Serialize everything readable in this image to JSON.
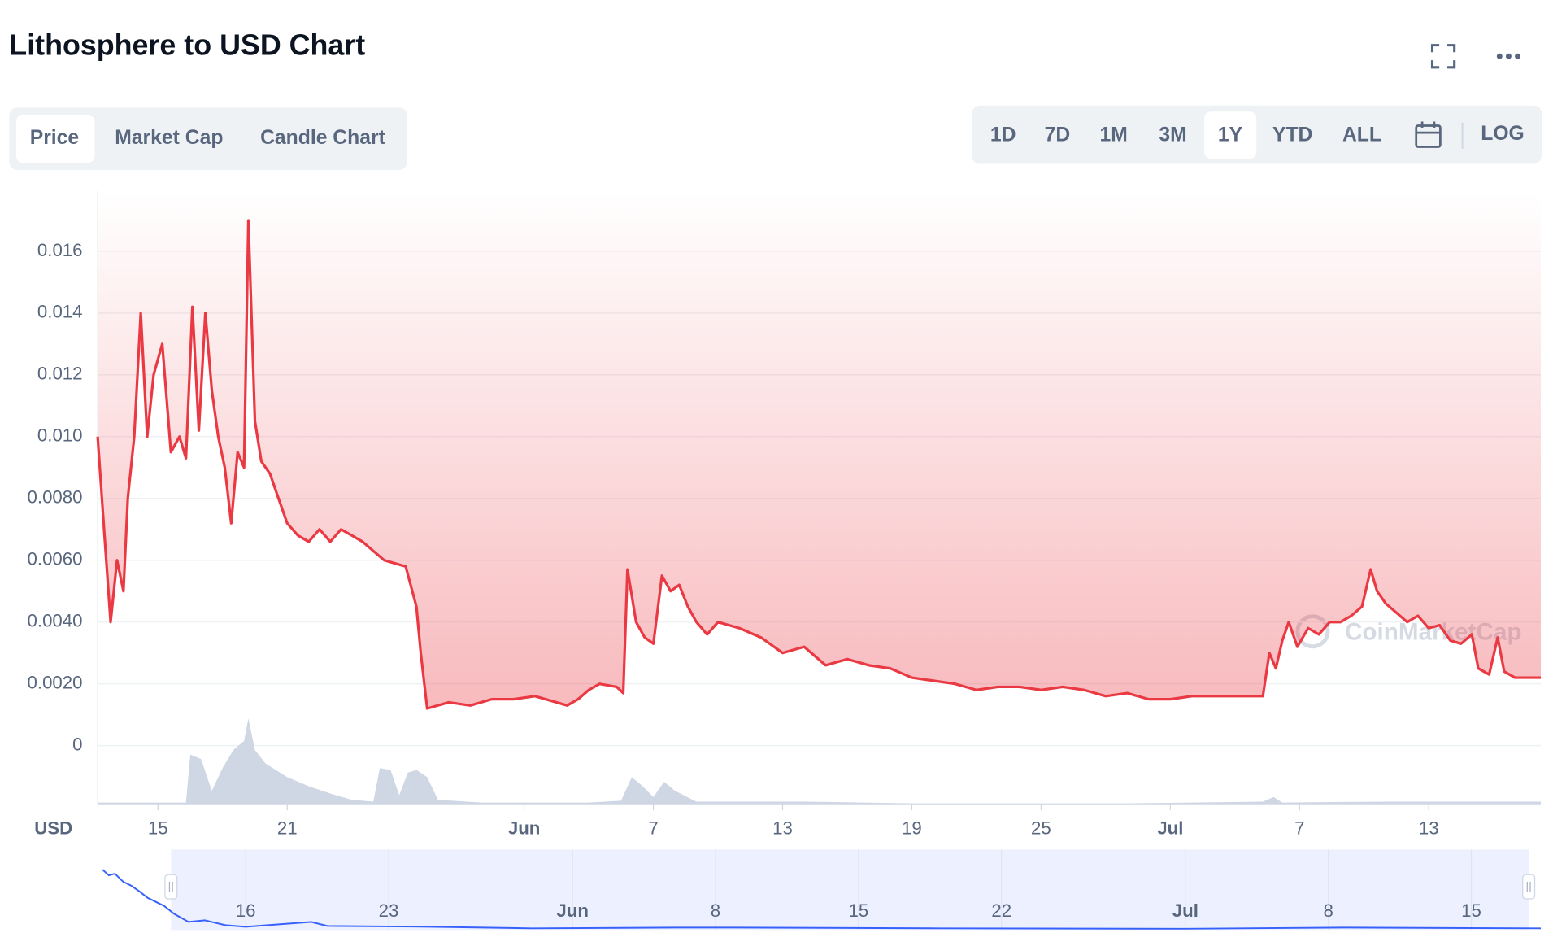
{
  "chart_data": {
    "type": "line",
    "title": "Lithosphere to USD Chart",
    "y_label": "USD",
    "color": "#ea3943",
    "x": [
      12.2,
      12.5,
      12.8,
      13.1,
      13.4,
      13.6,
      13.9,
      14.2,
      14.5,
      14.8,
      15.2,
      15.6,
      16.0,
      16.3,
      16.6,
      16.9,
      17.2,
      17.5,
      17.8,
      18.1,
      18.4,
      18.7,
      19.0,
      19.2,
      19.5,
      19.8,
      20.2,
      20.6,
      21.0,
      21.5,
      22.0,
      22.5,
      23.0,
      23.5,
      24.0,
      24.5,
      25.0,
      25.5,
      26.0,
      26.5,
      27.0,
      27.2,
      27.5,
      28.5,
      29.5,
      30.5,
      31.5,
      32.5,
      33.5,
      34.0,
      34.5,
      35.0,
      35.5,
      36.3,
      36.6,
      36.8,
      37.2,
      37.6,
      38.0,
      38.4,
      38.8,
      39.2,
      39.6,
      40.0,
      40.5,
      41.0,
      42.0,
      43.0,
      44.0,
      45.0,
      46.0,
      47.0,
      48.0,
      49.0,
      50.0,
      51.0,
      52.0,
      53.0,
      54.0,
      55.0,
      56.0,
      57.0,
      58.0,
      59.0,
      60.0,
      61.0,
      62.0,
      63.0,
      64.0,
      65.0,
      66.3,
      66.6,
      66.9,
      67.2,
      67.5,
      67.9,
      68.4,
      68.9,
      69.4,
      69.9,
      70.4,
      70.9,
      71.3,
      71.6,
      72.0,
      72.5,
      73.0,
      73.5,
      74.0,
      74.5,
      75.0,
      75.5,
      76.0,
      76.3,
      76.8,
      77.2,
      77.5,
      78.0,
      79.2
    ],
    "values": [
      0.01,
      0.007,
      0.004,
      0.006,
      0.005,
      0.008,
      0.01,
      0.014,
      0.01,
      0.012,
      0.013,
      0.0095,
      0.01,
      0.0093,
      0.0142,
      0.0102,
      0.014,
      0.0115,
      0.01,
      0.009,
      0.0072,
      0.0095,
      0.009,
      0.017,
      0.0105,
      0.0092,
      0.0088,
      0.008,
      0.0072,
      0.0068,
      0.0066,
      0.007,
      0.0066,
      0.007,
      0.0068,
      0.0066,
      0.0063,
      0.006,
      0.0059,
      0.0058,
      0.0045,
      0.003,
      0.0012,
      0.0014,
      0.0013,
      0.0015,
      0.0015,
      0.0016,
      0.0014,
      0.0013,
      0.0015,
      0.0018,
      0.002,
      0.0019,
      0.0017,
      0.0057,
      0.004,
      0.0035,
      0.0033,
      0.0055,
      0.005,
      0.0052,
      0.0045,
      0.004,
      0.0036,
      0.004,
      0.0038,
      0.0035,
      0.003,
      0.0032,
      0.0026,
      0.0028,
      0.0026,
      0.0025,
      0.0022,
      0.0021,
      0.002,
      0.0018,
      0.0019,
      0.0019,
      0.0018,
      0.0019,
      0.0018,
      0.0016,
      0.0017,
      0.0015,
      0.0015,
      0.0016,
      0.0016,
      0.0016,
      0.0016,
      0.003,
      0.0025,
      0.0034,
      0.004,
      0.0032,
      0.0038,
      0.0036,
      0.004,
      0.004,
      0.0042,
      0.0045,
      0.0057,
      0.005,
      0.0046,
      0.0043,
      0.004,
      0.0042,
      0.0038,
      0.0039,
      0.0034,
      0.0033,
      0.0036,
      0.0025,
      0.0023,
      0.0035,
      0.0024,
      0.0022,
      0.0022
    ],
    "xlim": [
      12.2,
      79.2
    ],
    "xticks": [
      15,
      21,
      {
        "value": 32,
        "label": "Jun"
      },
      {
        "value": 38,
        "label": "7"
      },
      {
        "value": 44,
        "label": "13"
      },
      {
        "value": 50,
        "label": "19"
      },
      {
        "value": 56,
        "label": "25"
      },
      {
        "value": 62,
        "label": "Jul"
      },
      {
        "value": 68,
        "label": "7"
      },
      {
        "value": 74,
        "label": "13"
      }
    ],
    "ylim": [
      -0.0019,
      0.01795
    ],
    "yticks": [
      0,
      {
        "value": 0.002,
        "label": "0.0020"
      },
      {
        "value": 0.004,
        "label": "0.0040"
      },
      {
        "value": 0.006,
        "label": "0.0060"
      },
      {
        "value": 0.008,
        "label": "0.0080"
      },
      {
        "value": 0.01,
        "label": "0.010"
      },
      {
        "value": 0.012,
        "label": "0.012"
      },
      {
        "value": 0.014,
        "label": "0.014"
      },
      {
        "value": 0.016,
        "label": "0.016"
      }
    ],
    "grid": true,
    "volume": {
      "color": "#cfd6e4",
      "ylim": [
        0,
        100
      ],
      "x": [
        12.2,
        16.3,
        16.5,
        17.0,
        17.5,
        18.0,
        18.5,
        19.0,
        19.2,
        19.5,
        20.0,
        21.0,
        22.0,
        23.0,
        24.0,
        25.0,
        25.3,
        25.8,
        26.2,
        26.6,
        27.0,
        27.5,
        28.0,
        30.0,
        35.0,
        36.5,
        37.0,
        37.5,
        38.0,
        38.5,
        39.0,
        40.0,
        45.0,
        50.0,
        60.0,
        66.3,
        66.8,
        67.2,
        72.0,
        79.2
      ],
      "values": [
        2,
        2,
        55,
        50,
        15,
        40,
        60,
        70,
        95,
        60,
        45,
        30,
        20,
        12,
        5,
        3,
        40,
        38,
        10,
        35,
        38,
        30,
        5,
        2,
        2,
        4,
        30,
        20,
        8,
        25,
        15,
        3,
        3,
        1,
        1,
        3,
        8,
        2,
        3,
        3
      ]
    },
    "navigator": {
      "color": "#3861fb",
      "xlim": [
        8.9,
        79.4
      ],
      "ylim": [
        0,
        0.1
      ],
      "xticks": [
        16,
        23,
        {
          "value": 32,
          "label": "Jun"
        },
        {
          "value": 39,
          "label": "8"
        },
        {
          "value": 46,
          "label": "15"
        },
        {
          "value": 53,
          "label": "22"
        },
        {
          "value": 62,
          "label": "Jul"
        },
        {
          "value": 69,
          "label": "8"
        },
        {
          "value": 76,
          "label": "15"
        }
      ],
      "x": [
        9.0,
        9.3,
        9.6,
        10.0,
        10.4,
        10.8,
        11.2,
        11.6,
        12.0,
        12.5,
        13.2,
        14.0,
        15.0,
        16.0,
        19.2,
        20.0,
        25.0,
        30.0,
        37.0,
        40.0,
        50.0,
        62.0,
        70.0,
        79.4
      ],
      "values": [
        0.075,
        0.068,
        0.07,
        0.06,
        0.055,
        0.048,
        0.04,
        0.035,
        0.03,
        0.02,
        0.01,
        0.012,
        0.006,
        0.004,
        0.01,
        0.005,
        0.004,
        0.002,
        0.003,
        0.003,
        0.002,
        0.0015,
        0.003,
        0.002
      ]
    }
  },
  "ui": {
    "tabs": [
      "Price",
      "Market Cap",
      "Candle Chart"
    ],
    "ranges": [
      "1D",
      "7D",
      "1M",
      "3M",
      "1Y",
      "YTD",
      "ALL"
    ],
    "log": "LOG",
    "watermark": "CoinMarketCap"
  }
}
